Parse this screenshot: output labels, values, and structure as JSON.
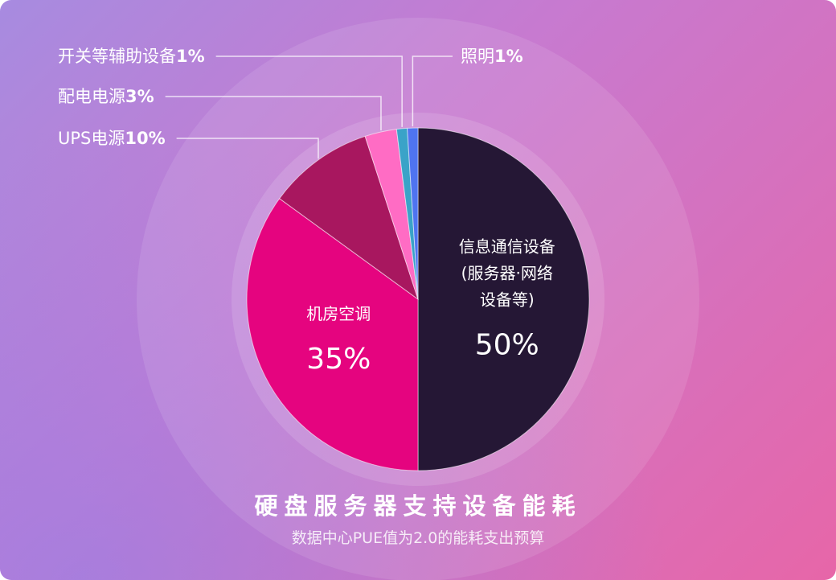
{
  "chart_data": {
    "type": "pie",
    "slices": [
      {
        "name": "信息通信设备\n(服务器·网络\n设备等)",
        "value": 50,
        "value_label": "50%",
        "color": "#251735",
        "label_style": "inside"
      },
      {
        "name": "机房空调",
        "value": 35,
        "value_label": "35%",
        "color": "#e5047f",
        "label_style": "inside"
      },
      {
        "name": "UPS电源",
        "value": 10,
        "value_label": "10%",
        "color": "#a8175f",
        "label_style": "callout"
      },
      {
        "name": "配电电源",
        "value": 3,
        "value_label": "3%",
        "color": "#ff6cc4",
        "label_style": "callout"
      },
      {
        "name": "开关等辅助设备",
        "value": 1,
        "value_label": "1%",
        "color": "#3aa3c8",
        "label_style": "callout"
      },
      {
        "name": "照明",
        "value": 1,
        "value_label": "1%",
        "color": "#4f74f0",
        "label_style": "callout"
      }
    ],
    "title": "硬盘服务器支持设备能耗",
    "subtitle": "数据中心PUE值为2.0的能耗支出预算"
  },
  "caption": {
    "title": "硬盘服务器支持设备能耗",
    "subtitle": "数据中心PUE值为2.0的能耗支出预算"
  }
}
